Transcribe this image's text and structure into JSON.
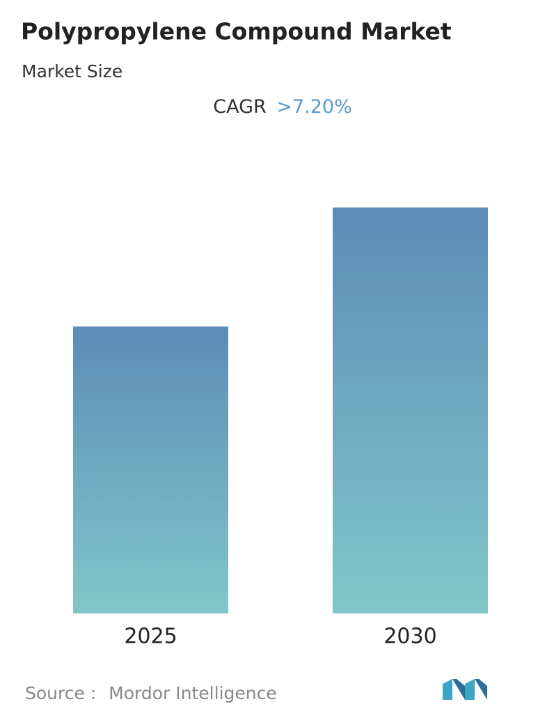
{
  "chart_data": {
    "type": "bar",
    "title": "Polypropylene Compound Market",
    "subtitle": "Market Size",
    "cagr_label": "CAGR",
    "cagr_value": ">7.20%",
    "categories": [
      "2025",
      "2030"
    ],
    "values": [
      70.7,
      100
    ],
    "colors": [
      "#5b8cb8",
      "#82c6c9"
    ],
    "source_label": "Source :",
    "source": "Mordor Intelligence"
  }
}
